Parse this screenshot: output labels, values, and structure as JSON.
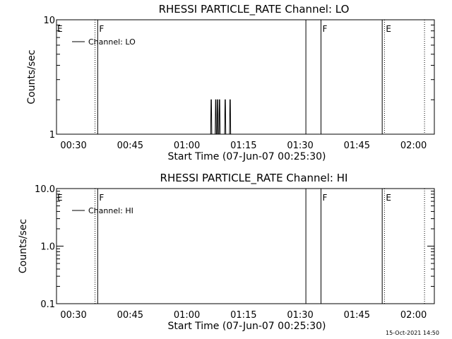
{
  "footer": {
    "timestamp": "15-Oct-2021 14:50"
  },
  "chart_data": [
    {
      "type": "line",
      "title": "RHESSI PARTICLE_RATE Channel: LO",
      "xlabel": "Start Time (07-Jun-07 00:25:30)",
      "ylabel": "Counts/sec",
      "x_unit": "minutes after 00:25:30",
      "xlim": [
        0,
        100
      ],
      "ylim": [
        1,
        10
      ],
      "y_scale": "log",
      "grid": false,
      "legend": {
        "placement": "top-left",
        "label": "Channel: LO"
      },
      "x_ticks": [
        {
          "label": "00:30",
          "value": 4.5
        },
        {
          "label": "00:45",
          "value": 19.5
        },
        {
          "label": "01:00",
          "value": 34.5
        },
        {
          "label": "01:15",
          "value": 49.5
        },
        {
          "label": "01:30",
          "value": 64.5
        },
        {
          "label": "01:45",
          "value": 79.5
        },
        {
          "label": "02:00",
          "value": 94.5
        }
      ],
      "y_ticks": [
        {
          "label": "1",
          "value": 1
        },
        {
          "label": "10",
          "value": 10
        }
      ],
      "markers": [
        {
          "time": 10.2,
          "style": "dotted",
          "label": "E"
        },
        {
          "time": 10.9,
          "style": "solid",
          "label": "F"
        },
        {
          "time": 66.0,
          "style": "solid",
          "label": ""
        },
        {
          "time": 70.0,
          "style": "solid",
          "label": "F"
        },
        {
          "time": 86.2,
          "style": "solid",
          "label": ""
        },
        {
          "time": 86.8,
          "style": "dotted",
          "label": "E"
        },
        {
          "time": 97.4,
          "style": "dotted",
          "label": ""
        }
      ],
      "series": [
        {
          "name": "Channel: LO",
          "x": [
            0,
            40.8,
            40.9,
            41.0,
            41.1,
            42.0,
            42.1,
            42.2,
            42.3,
            42.5,
            42.6,
            42.7,
            42.8,
            43.0,
            43.1,
            43.2,
            43.3,
            44.5,
            44.6,
            44.7,
            44.8,
            45.8,
            45.9,
            46.0,
            46.1,
            100
          ],
          "y": [
            1,
            1,
            2,
            2,
            1,
            1,
            2,
            2,
            1,
            1,
            2,
            2,
            1,
            1,
            2,
            2,
            1,
            1,
            2,
            2,
            1,
            1,
            2,
            2,
            1,
            1
          ]
        }
      ]
    },
    {
      "type": "line",
      "title": "RHESSI PARTICLE_RATE Channel: HI",
      "xlabel": "Start Time (07-Jun-07 00:25:30)",
      "ylabel": "Counts/sec",
      "x_unit": "minutes after 00:25:30",
      "xlim": [
        0,
        100
      ],
      "ylim": [
        0.1,
        10
      ],
      "y_scale": "log",
      "grid": false,
      "legend": {
        "placement": "top-left",
        "label": "Channel: HI"
      },
      "x_ticks": [
        {
          "label": "00:30",
          "value": 4.5
        },
        {
          "label": "00:45",
          "value": 19.5
        },
        {
          "label": "01:00",
          "value": 34.5
        },
        {
          "label": "01:15",
          "value": 49.5
        },
        {
          "label": "01:30",
          "value": 64.5
        },
        {
          "label": "01:45",
          "value": 79.5
        },
        {
          "label": "02:00",
          "value": 94.5
        }
      ],
      "y_ticks": [
        {
          "label": "0.1",
          "value": 0.1
        },
        {
          "label": "1.0",
          "value": 1
        },
        {
          "label": "10.0",
          "value": 10
        }
      ],
      "markers": [
        {
          "time": 10.2,
          "style": "dotted",
          "label": "E"
        },
        {
          "time": 10.9,
          "style": "solid",
          "label": "F"
        },
        {
          "time": 66.0,
          "style": "solid",
          "label": ""
        },
        {
          "time": 70.0,
          "style": "solid",
          "label": "F"
        },
        {
          "time": 86.2,
          "style": "solid",
          "label": ""
        },
        {
          "time": 86.8,
          "style": "dotted",
          "label": "E"
        },
        {
          "time": 97.4,
          "style": "dotted",
          "label": ""
        }
      ],
      "series": [
        {
          "name": "Channel: HI",
          "x": [],
          "y": []
        }
      ]
    }
  ]
}
